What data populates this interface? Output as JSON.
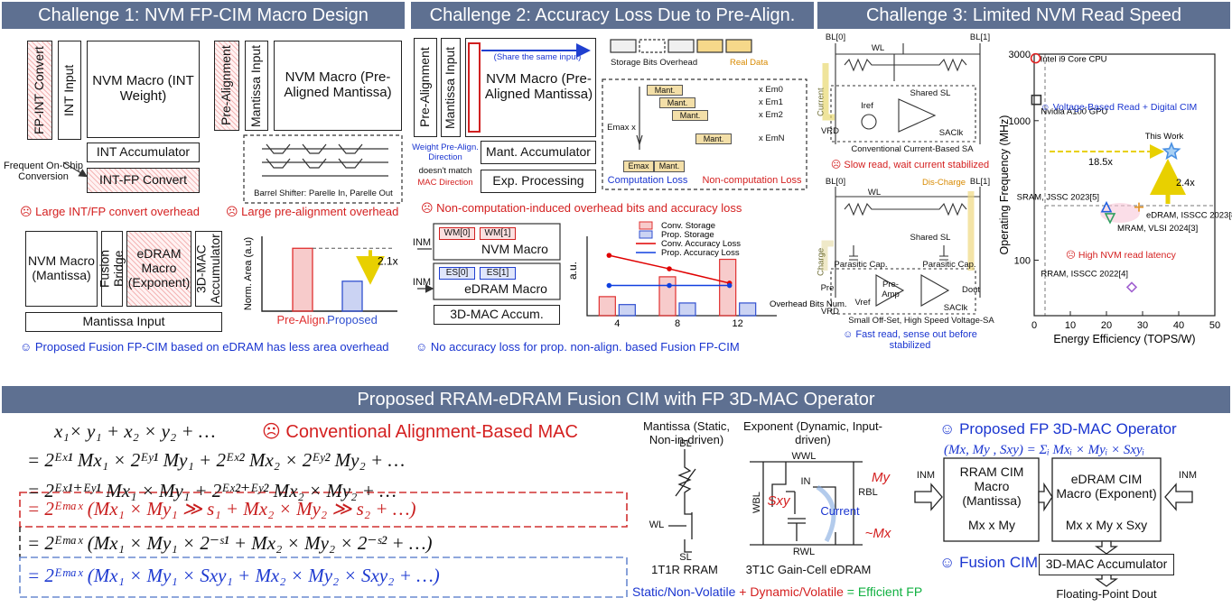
{
  "panels": [
    {
      "title": "Challenge 1: NVM FP-CIM Macro Design",
      "blocks": {
        "fp_int_convert": "FP-INT Convert",
        "int_input": "INT Input",
        "nvm_int_weight": "NVM Macro (INT Weight)",
        "int_accumulator": "INT Accumulator",
        "conversion_note": "Frequent On-Chip Conversion",
        "int_fp_convert": "INT-FP Convert",
        "pre_alignment": "Pre-Alignment",
        "mantissa_input": "Mantissa Input",
        "nvm_pre_aligned": "NVM Macro (Pre-Aligned Mantissa)",
        "barrel_shifter": "Barrel Shifter: Parelle In, Parelle Out",
        "nvm_mantissa": "NVM Macro (Mantissa)",
        "fusion_bridge": "Fusion Bridge",
        "edram_exponent": "eDRAM Macro (Exponent)",
        "mac_accumulator": "3D-MAC Accumulator",
        "fusion_mantissa_input": "Mantissa Input"
      },
      "issues": [
        "☹ Large INT/FP convert overhead",
        "☹ Large pre-alignment overhead"
      ],
      "area_chart": {
        "type": "bar",
        "ylabel": "Norm. Area (a.u)",
        "categories": [
          "Pre-Align.",
          "Proposed"
        ],
        "values": [
          2.1,
          1
        ],
        "colors": [
          "#e03030",
          "#3050d0"
        ],
        "ylim": [
          0,
          2.5
        ],
        "annotation": "2.1x"
      },
      "conclusion": "☺ Proposed  Fusion FP-CIM based on eDRAM has less area overhead"
    },
    {
      "title": "Challenge 2: Accuracy Loss Due to Pre-Align.",
      "blocks": {
        "pre_alignment": "Pre-Alignment",
        "mantissa_input": "Mantissa Input",
        "nvm_pre_aligned": "NVM Macro (Pre-Aligned Mantissa)",
        "share_note": "(Share the same input)",
        "storage_overhead": "Storage Bits Overhead",
        "real_data": "Real Data",
        "weight_direction": "Weight Pre-Align. Direction",
        "mismatch": "doesn't match",
        "mac_direction": "MAC Direction",
        "mant_accumulator": "Mant. Accumulator",
        "exp_processing": "Exp. Processing",
        "emax_x": "Emax x",
        "mant": "Mant.",
        "exponents": [
          "x Em0",
          "x Em1",
          "x Em2",
          "x EmN"
        ],
        "emax": "Emax",
        "computation_loss": "Computation Loss",
        "noncomputation_loss": "Non-computation Loss"
      },
      "issues": [
        "☹ Non-computation-induced overhead bits and accuracy loss"
      ],
      "fusion": {
        "input": "INM",
        "weights": [
          "WM[0]",
          "WM[1]"
        ],
        "nvm_macro": "NVM Macro",
        "exponents": [
          "ES[0]",
          "ES[1]"
        ],
        "edram_macro": "eDRAM Macro",
        "accumulator": "3D-MAC Accum."
      },
      "loss_chart": {
        "type": "bar-line",
        "ylabel": "a.u.",
        "xlabel": "Overhead Bits Num.",
        "categories": [
          "4",
          "8",
          "12"
        ],
        "ylim": [
          0,
          10
        ],
        "series": [
          {
            "name": "Conv. Storage",
            "kind": "bar",
            "color": "#e03030",
            "values": [
              2.4,
              4.9,
              7.1
            ]
          },
          {
            "name": "Prop. Storage",
            "kind": "bar",
            "color": "#3050d0",
            "values": [
              1.4,
              1.6,
              1.6
            ]
          },
          {
            "name": "Conv. Accuracy Loss",
            "kind": "line",
            "color": "#e00000",
            "values": [
              7.6,
              5.9,
              4.1
            ]
          },
          {
            "name": "Prop. Accuracy Loss",
            "kind": "line",
            "color": "#1040e0",
            "values": [
              3.8,
              3.8,
              3.8
            ]
          }
        ]
      },
      "conclusion": "☺ No accuracy loss for prop. non-align. based Fusion FP-CIM"
    },
    {
      "title": "Challenge 3: Limited NVM Read Speed",
      "current_sa": {
        "bl0": "BL[0]",
        "bl1": "BL[1]",
        "wl": "WL",
        "current": "Current",
        "shared_sl": "Shared SL",
        "iref": "Iref",
        "saclk": "SAClk",
        "vrd": "VRD",
        "caption": "Conventional Current-Based SA",
        "issue": "☹ Slow read, wait current stabilized"
      },
      "voltage_sa": {
        "bl0": "BL[0]",
        "bl1": "BL[1]",
        "wl": "WL",
        "discharge": "Dis-Charge",
        "shared_sl": "Shared SL",
        "charge": "Charge",
        "parasitic": "Parasitic Cap.",
        "pre": "Pre",
        "preamp": "Pre-Amp",
        "vref": "Vref",
        "dout": "Dout",
        "saclk": "SAClk",
        "vrd": "VRD",
        "caption": "Small Off-Set, High Speed Voltage-SA",
        "conclusion": "☺ Fast read, sense out before stabilized"
      },
      "scatter": {
        "type": "scatter",
        "xlabel": "Energy Efficiency (TOPS/W)",
        "ylabel": "Operating Frequency (MHz)",
        "xlim": [
          0,
          50
        ],
        "xticks": [
          0,
          10,
          20,
          30,
          40,
          50
        ],
        "ylim": [
          40,
          3000
        ],
        "yticks": [
          100,
          1000,
          3000
        ],
        "ylog": true,
        "points": [
          {
            "name": "Intel i9 Core CPU",
            "x": 0.4,
            "y": 2800,
            "marker": "circle",
            "color": "#e02020"
          },
          {
            "name": "Nvidia A100 GPU",
            "x": 0.6,
            "y": 1410,
            "marker": "square",
            "color": "#333333"
          },
          {
            "name": "This Work",
            "x": 38,
            "y": 600,
            "marker": "star",
            "color": "#4a90e2"
          },
          {
            "name": "SRAM, JSSC 2023[5]",
            "x": 20,
            "y": 240,
            "marker": "triangle",
            "color": "#2060e0"
          },
          {
            "name": "eDRAM, ISSCC 2023[8]",
            "x": 29,
            "y": 240,
            "marker": "plus",
            "color": "#e09020"
          },
          {
            "name": "MRAM, VLSI 2024[3]",
            "x": 21,
            "y": 200,
            "marker": "triangle-down",
            "color": "#30a060"
          },
          {
            "name": "RRAM, ISSCC 2022[4]",
            "x": 27,
            "y": 64,
            "marker": "diamond",
            "color": "#a060d0"
          }
        ],
        "annotations": {
          "voltage": "☺ Voltage-Based Read + Digital CIM",
          "latency": "☹ High NVM read latency",
          "gain_x": "18.5x",
          "gain_y": "2.4x"
        }
      }
    }
  ],
  "proposal": {
    "title": "Proposed RRAM-eDRAM Fusion CIM with FP 3D-MAC Operator",
    "equations": {
      "note": "☹ Conventional Alignment-Based MAC",
      "lines": [
        "x₁× y₁ + x₂ × y₂ + …",
        "= 2ᴱˣ¹ Mx₁ × 2ᴱʸ¹ My₁ + 2ᴱˣ² Mx₂ × 2ᴱʸ² My₂ + …",
        "= 2ᴱˣ¹⁺ᴱʸ¹ Mx₁ × My₁ + 2ᴱˣ²⁺ᴱʸ² Mx₂ × My₂ + …",
        "= 2ᴱᵐᵃˣ (Mx₁ × My₁ ≫ s₁ + Mx₂ × My₂ ≫ s₂ + …)",
        "= 2ᴱᵐᵃˣ (Mx₁ × My₁ × 2⁻ˢ¹ + Mx₂ × My₂ × 2⁻ˢ² + …)",
        "= 2ᴱᵐᵃˣ (Mx₁ × My₁ × Sxy₁ + Mx₂ × My₂ × Sxy₂ + …)"
      ]
    },
    "rram_cell": {
      "title": "Mantissa (Static, Non-in-driven)",
      "bl": "BL",
      "wl": "WL",
      "sl": "SL",
      "label": "1T1R RRAM"
    },
    "edram_cell": {
      "title": "Exponent (Dynamic, Input-driven)",
      "wwl": "WWL",
      "in": "IN",
      "wbl": "WBL",
      "rbl": "RBL",
      "sxy": "Sxy",
      "current": "Current",
      "my": "My",
      "mx": "~Mx",
      "rwl": "RWL",
      "label": "3T1C Gain-Cell eDRAM"
    },
    "summary": [
      "Static/Non-Volatile",
      " + ",
      "Dynamic/Volatile",
      " = ",
      "Efficient FP"
    ],
    "operator": {
      "title": "☺ Proposed FP 3D-MAC Operator",
      "formula": "(Mx, My , Sxy) = Σᵢ Mxᵢ × Myᵢ × Sxyᵢ",
      "input": "INM",
      "rram_macro": "RRAM CIM Macro (Mantissa)",
      "rram_out": "Mx x My",
      "edram_macro": "eDRAM CIM Macro (Exponent)",
      "edram_out": "Mx x My x Sxy",
      "fusion": "☺ Fusion CIM",
      "accumulator": "3D-MAC Accumulator",
      "output": "Floating-Point Dout"
    }
  }
}
